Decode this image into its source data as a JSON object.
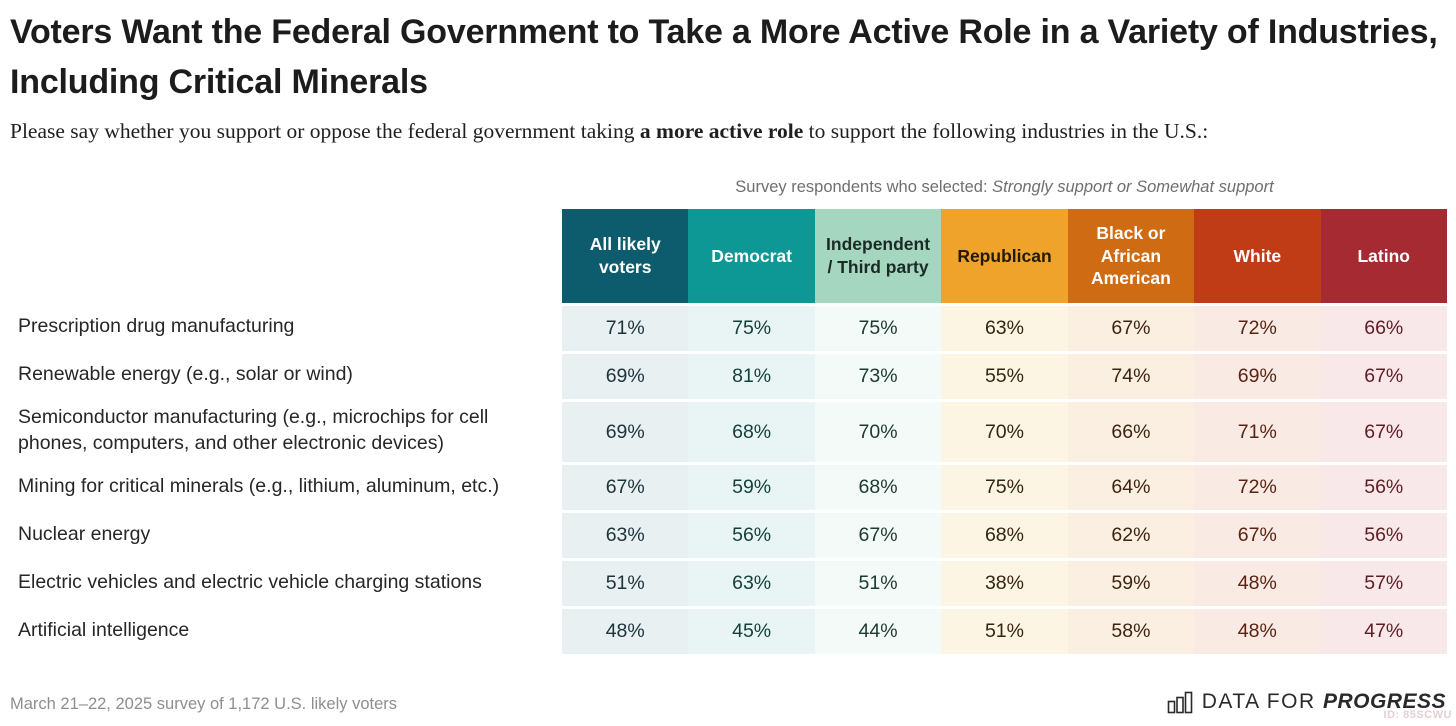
{
  "header": {
    "title": "Voters Want the Federal Government to Take a More Active Role in a Variety of Industries, Including Critical Minerals",
    "subtitle_prefix": "Please say whether you support or oppose the federal government taking ",
    "subtitle_bold": "a more active role",
    "subtitle_suffix": " to support the following industries in the U.S.:"
  },
  "caption": {
    "prefix": "Survey respondents who selected: ",
    "italic": "Strongly support or Somewhat support"
  },
  "chart_data": {
    "type": "table",
    "title": "Voters Want the Federal Government to Take a More Active Role in a Variety of Industries, Including Critical Minerals",
    "subtitle": "Please say whether you support or oppose the federal government taking a more active role to support the following industries in the U.S.:",
    "caption": "Survey respondents who selected: Strongly support or Somewhat support",
    "unit": "%",
    "columns": [
      {
        "label": "All likely voters",
        "header_bg": "#0d5c6d",
        "header_text": "#ffffff",
        "cell_bg": "#e9f0f1",
        "value_color": "#1c333b"
      },
      {
        "label": "Democrat",
        "header_bg": "#0d9795",
        "header_text": "#ffffff",
        "cell_bg": "#e8f5f4",
        "value_color": "#143f3d"
      },
      {
        "label": "Independent / Third party",
        "header_bg": "#a5d6c0",
        "header_text": "#1a2b26",
        "cell_bg": "#f4faf7",
        "value_color": "#1b3a30"
      },
      {
        "label": "Republican",
        "header_bg": "#f0a32a",
        "header_text": "#241a04",
        "cell_bg": "#fdf5e4",
        "value_color": "#33250e"
      },
      {
        "label": "Black or African American",
        "header_bg": "#ce6b13",
        "header_text": "#ffffff",
        "cell_bg": "#fbefe2",
        "value_color": "#3c2410"
      },
      {
        "label": "White",
        "header_bg": "#bf3c17",
        "header_text": "#ffffff",
        "cell_bg": "#f9ebe4",
        "value_color": "#5a2212"
      },
      {
        "label": "Latino",
        "header_bg": "#a52a32",
        "header_text": "#ffffff",
        "cell_bg": "#f8e8e9",
        "value_color": "#5e1d24"
      }
    ],
    "rows": [
      {
        "label": "Prescription drug manufacturing",
        "values": [
          71,
          75,
          75,
          63,
          67,
          72,
          66
        ]
      },
      {
        "label": "Renewable energy (e.g., solar or wind)",
        "values": [
          69,
          81,
          73,
          55,
          74,
          69,
          67
        ]
      },
      {
        "label": "Semiconductor manufacturing (e.g., microchips for cell phones, computers, and other electronic devices)",
        "values": [
          69,
          68,
          70,
          70,
          66,
          71,
          67
        ]
      },
      {
        "label": "Mining for critical minerals (e.g., lithium, aluminum, etc.)",
        "values": [
          67,
          59,
          68,
          75,
          64,
          72,
          56
        ]
      },
      {
        "label": "Nuclear energy",
        "values": [
          63,
          56,
          67,
          68,
          62,
          67,
          56
        ]
      },
      {
        "label": "Electric vehicles and electric vehicle charging stations",
        "values": [
          51,
          63,
          51,
          38,
          59,
          48,
          57
        ]
      },
      {
        "label": "Artificial intelligence",
        "values": [
          48,
          45,
          44,
          51,
          58,
          48,
          47
        ]
      }
    ]
  },
  "footer": {
    "note": "March 21–22, 2025 survey of 1,172 U.S. likely voters",
    "logo_prefix": "DATA FOR ",
    "logo_bold": "PROGRESS",
    "watermark": "ID: 85SCWU"
  }
}
